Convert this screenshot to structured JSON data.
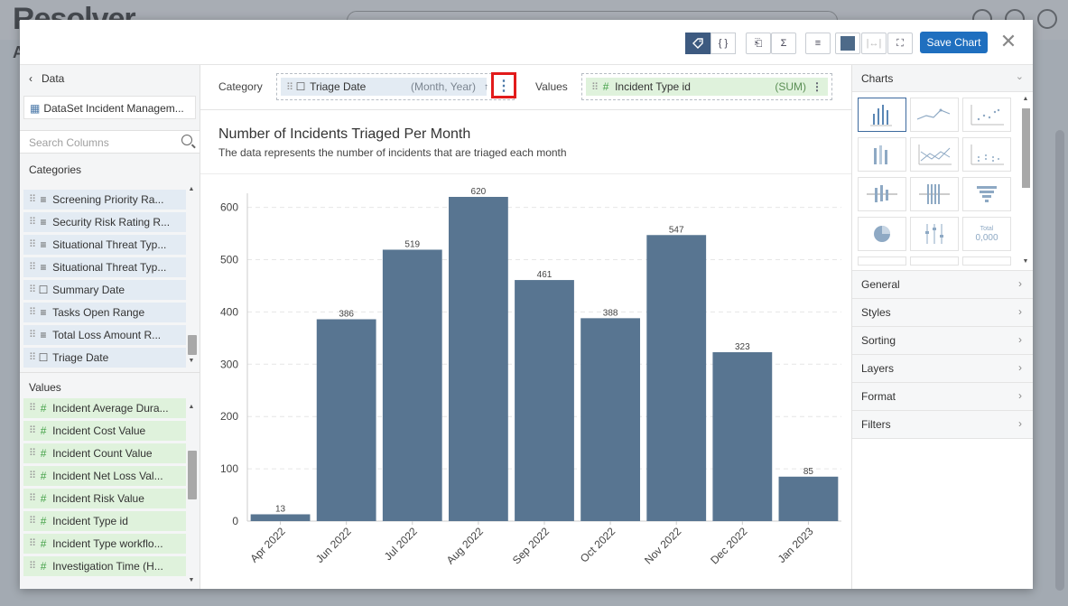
{
  "background": {
    "logo": "Resolver",
    "tab_letter": "A"
  },
  "toolbar": {
    "save_label": "Save Chart"
  },
  "left_panel": {
    "back_label": "Data",
    "dataset_label": "DataSet Incident Managem...",
    "search_placeholder": "Search Columns",
    "categories_title": "Categories",
    "categories": [
      {
        "label": "Screening Priority Ra...",
        "icon": "text-icon"
      },
      {
        "label": "Security Risk Rating R...",
        "icon": "text-icon"
      },
      {
        "label": "Situational Threat Typ...",
        "icon": "text-icon"
      },
      {
        "label": "Situational Threat Typ...",
        "icon": "text-icon"
      },
      {
        "label": "Summary Date",
        "icon": "calendar-icon"
      },
      {
        "label": "Tasks Open Range",
        "icon": "text-icon"
      },
      {
        "label": "Total Loss Amount R...",
        "icon": "text-icon"
      },
      {
        "label": "Triage Date",
        "icon": "calendar-icon"
      }
    ],
    "values_title": "Values",
    "values": [
      {
        "label": "Incident Average Dura..."
      },
      {
        "label": "Incident Cost Value"
      },
      {
        "label": "Incident Count Value"
      },
      {
        "label": "Incident Net Loss Val..."
      },
      {
        "label": "Incident Risk Value"
      },
      {
        "label": "Incident Type id"
      },
      {
        "label": "Incident Type workflo..."
      },
      {
        "label": "Investigation Time (H..."
      }
    ]
  },
  "fieldbar": {
    "category_label": "Category",
    "category_field": "Triage Date",
    "category_hint": "(Month, Year)",
    "values_label": "Values",
    "values_field": "Incident Type id",
    "values_hint": "(SUM)"
  },
  "chart": {
    "title": "Number of Incidents Triaged Per Month",
    "subtitle": "The data represents the number of incidents that are triaged each month"
  },
  "chart_data": {
    "type": "bar",
    "categories": [
      "Apr 2022",
      "Jun 2022",
      "Jul 2022",
      "Aug 2022",
      "Sep 2022",
      "Oct 2022",
      "Nov 2022",
      "Dec 2022",
      "Jan 2023"
    ],
    "values": [
      13,
      386,
      519,
      620,
      461,
      388,
      547,
      323,
      85
    ],
    "title": "Number of Incidents Triaged Per Month",
    "ylim": [
      0,
      620
    ],
    "yticks": [
      0,
      100,
      200,
      300,
      400,
      500,
      600
    ],
    "bar_color": "#587591",
    "grid": true
  },
  "right_panel": {
    "charts_title": "Charts",
    "chart_types": [
      "column-chart-icon",
      "line-chart-icon",
      "scatter-chart-icon",
      "stacked-column-icon",
      "area-chart-icon",
      "dot-plot-icon",
      "box-plot-icon",
      "grouped-column-icon",
      "funnel-chart-icon",
      "pie-chart-icon",
      "range-chart-icon",
      "kpi-number-icon"
    ],
    "kpi_icon_top": "Total",
    "kpi_icon_value": "0,000",
    "sections": [
      "General",
      "Styles",
      "Sorting",
      "Layers",
      "Format",
      "Filters"
    ]
  },
  "colors": {
    "primary": "#1f6fbf",
    "bar": "#587591",
    "category_pill": "#e3ebf3",
    "value_pill": "#dff2dc",
    "highlight": "#e21b1b"
  }
}
